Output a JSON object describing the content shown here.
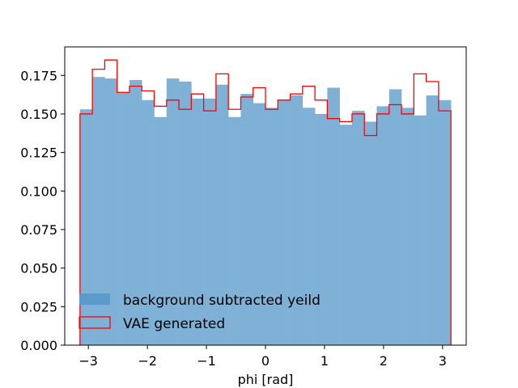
{
  "chart_data": {
    "type": "histogram",
    "xlabel": "phi [rad]",
    "ylabel": "",
    "title": "",
    "xlim": [
      -3.4,
      3.4
    ],
    "ylim": [
      0,
      0.1935
    ],
    "bin_edges": [
      -3.1416,
      -2.9322,
      -2.7227,
      -2.5133,
      -2.3038,
      -2.0944,
      -1.885,
      -1.6755,
      -1.4661,
      -1.2566,
      -1.0472,
      -0.8378,
      -0.6283,
      -0.4189,
      -0.2094,
      0.0,
      0.2094,
      0.4189,
      0.6283,
      0.8378,
      1.0472,
      1.2566,
      1.4661,
      1.6755,
      1.885,
      2.0944,
      2.3038,
      2.5133,
      2.7227,
      2.9322,
      3.1416
    ],
    "xticks": [
      -3,
      -2,
      -1,
      0,
      1,
      2,
      3
    ],
    "xtick_labels": [
      "−3",
      "−2",
      "−1",
      "0",
      "1",
      "2",
      "3"
    ],
    "yticks": [
      0.0,
      0.025,
      0.05,
      0.075,
      0.1,
      0.125,
      0.15,
      0.175
    ],
    "ytick_labels": [
      "0.000",
      "0.025",
      "0.050",
      "0.075",
      "0.100",
      "0.125",
      "0.150",
      "0.175"
    ],
    "series": [
      {
        "name": "background subtracted yeild",
        "style": "filled",
        "color": "#7fb1d6",
        "legend_color": "#5a9bcb",
        "values": [
          0.153,
          0.174,
          0.173,
          0.164,
          0.172,
          0.159,
          0.148,
          0.173,
          0.171,
          0.16,
          0.16,
          0.169,
          0.148,
          0.163,
          0.157,
          0.154,
          0.159,
          0.162,
          0.154,
          0.15,
          0.167,
          0.143,
          0.152,
          0.145,
          0.155,
          0.166,
          0.154,
          0.149,
          0.162,
          0.159
        ]
      },
      {
        "name": "VAE generated",
        "style": "step",
        "color": "#ff0000",
        "values": [
          0.15,
          0.179,
          0.185,
          0.164,
          0.168,
          0.165,
          0.155,
          0.159,
          0.153,
          0.163,
          0.152,
          0.176,
          0.153,
          0.161,
          0.167,
          0.153,
          0.159,
          0.163,
          0.168,
          0.159,
          0.147,
          0.145,
          0.15,
          0.136,
          0.15,
          0.156,
          0.15,
          0.176,
          0.171,
          0.152
        ]
      }
    ],
    "legend": {
      "placement": "lower-left"
    },
    "grid": false
  }
}
